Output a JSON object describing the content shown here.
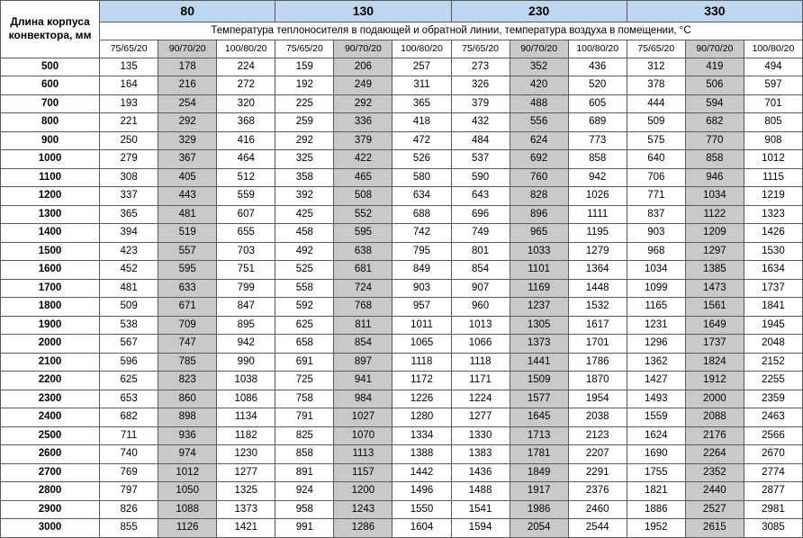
{
  "corner_label_line1": "Длина корпуса",
  "corner_label_line2": "конвектора, мм",
  "temp_header": "Температура теплоносителя в подающей и обратной линии, температура воздуха в помещении, °С",
  "groups": [
    "80",
    "130",
    "230",
    "330"
  ],
  "sub_labels": [
    "75/65/20",
    "90/70/20",
    "100/80/20"
  ],
  "row_labels": [
    "500",
    "600",
    "700",
    "800",
    "900",
    "1000",
    "1100",
    "1200",
    "1300",
    "1400",
    "1500",
    "1600",
    "1700",
    "1800",
    "1900",
    "2000",
    "2100",
    "2200",
    "2300",
    "2400",
    "2500",
    "2600",
    "2700",
    "2800",
    "2900",
    "3000"
  ],
  "rows": [
    [
      135,
      178,
      224,
      159,
      206,
      257,
      273,
      352,
      436,
      312,
      419,
      494
    ],
    [
      164,
      216,
      272,
      192,
      249,
      311,
      326,
      420,
      520,
      378,
      506,
      597
    ],
    [
      193,
      254,
      320,
      225,
      292,
      365,
      379,
      488,
      605,
      444,
      594,
      701
    ],
    [
      221,
      292,
      368,
      259,
      336,
      418,
      432,
      556,
      689,
      509,
      682,
      805
    ],
    [
      250,
      329,
      416,
      292,
      379,
      472,
      484,
      624,
      773,
      575,
      770,
      908
    ],
    [
      279,
      367,
      464,
      325,
      422,
      526,
      537,
      692,
      858,
      640,
      858,
      1012
    ],
    [
      308,
      405,
      512,
      358,
      465,
      580,
      590,
      760,
      942,
      706,
      946,
      1115
    ],
    [
      337,
      443,
      559,
      392,
      508,
      634,
      643,
      828,
      1026,
      771,
      1034,
      1219
    ],
    [
      365,
      481,
      607,
      425,
      552,
      688,
      696,
      896,
      1111,
      837,
      1122,
      1323
    ],
    [
      394,
      519,
      655,
      458,
      595,
      742,
      749,
      965,
      1195,
      903,
      1209,
      1426
    ],
    [
      423,
      557,
      703,
      492,
      638,
      795,
      801,
      1033,
      1279,
      968,
      1297,
      1530
    ],
    [
      452,
      595,
      751,
      525,
      681,
      849,
      854,
      1101,
      1364,
      1034,
      1385,
      1634
    ],
    [
      481,
      633,
      799,
      558,
      724,
      903,
      907,
      1169,
      1448,
      1099,
      1473,
      1737
    ],
    [
      509,
      671,
      847,
      592,
      768,
      957,
      960,
      1237,
      1532,
      1165,
      1561,
      1841
    ],
    [
      538,
      709,
      895,
      625,
      811,
      1011,
      1013,
      1305,
      1617,
      1231,
      1649,
      1945
    ],
    [
      567,
      747,
      942,
      658,
      854,
      1065,
      1066,
      1373,
      1701,
      1296,
      1737,
      2048
    ],
    [
      596,
      785,
      990,
      691,
      897,
      1118,
      1118,
      1441,
      1786,
      1362,
      1824,
      2152
    ],
    [
      625,
      823,
      1038,
      725,
      941,
      1172,
      1171,
      1509,
      1870,
      1427,
      1912,
      2255
    ],
    [
      653,
      860,
      1086,
      758,
      984,
      1226,
      1224,
      1577,
      1954,
      1493,
      2000,
      2359
    ],
    [
      682,
      898,
      1134,
      791,
      1027,
      1280,
      1277,
      1645,
      2038,
      1559,
      2088,
      2463
    ],
    [
      711,
      936,
      1182,
      825,
      1070,
      1334,
      1330,
      1713,
      2123,
      1624,
      2176,
      2566
    ],
    [
      740,
      974,
      1230,
      858,
      1113,
      1388,
      1383,
      1781,
      2207,
      1690,
      2264,
      2670
    ],
    [
      769,
      1012,
      1277,
      891,
      1157,
      1442,
      1436,
      1849,
      2291,
      1755,
      2352,
      2774
    ],
    [
      797,
      1050,
      1325,
      924,
      1200,
      1496,
      1488,
      1917,
      2376,
      1821,
      2440,
      2877
    ],
    [
      826,
      1088,
      1373,
      958,
      1243,
      1550,
      1541,
      1986,
      2460,
      1886,
      2527,
      2981
    ],
    [
      855,
      1126,
      1421,
      991,
      1286,
      1604,
      1594,
      2054,
      2544,
      1952,
      2615,
      3085
    ]
  ],
  "colors": {
    "group_bg": "#bdd7ee",
    "shaded_bg": "#c9c9c9",
    "border": "#5a5a5a"
  }
}
